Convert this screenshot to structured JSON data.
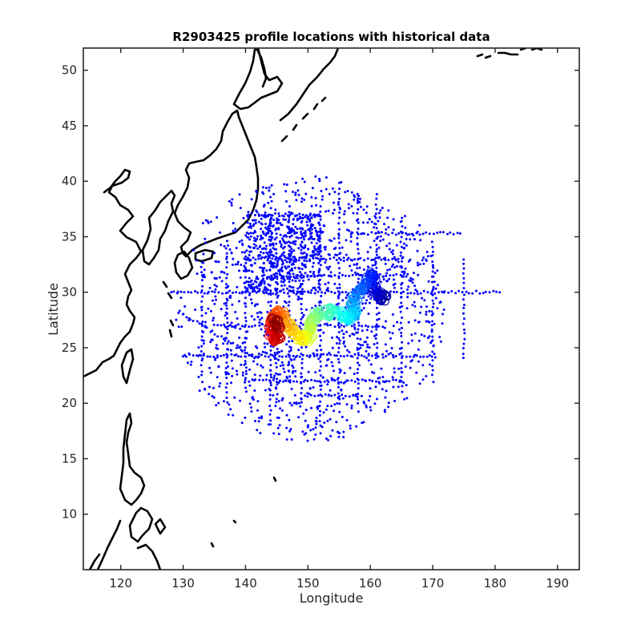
{
  "chart_data": {
    "type": "scatter",
    "title": "R2903425 profile locations with historical data",
    "xlabel": "Longitude",
    "ylabel": "Latitude",
    "xlim": [
      114,
      193.5
    ],
    "ylim": [
      5,
      52
    ],
    "xticks": [
      120,
      130,
      140,
      150,
      160,
      170,
      180,
      190
    ],
    "yticks": [
      10,
      15,
      20,
      25,
      30,
      35,
      40,
      45,
      50
    ],
    "grid": false,
    "legend": "none",
    "colors": {
      "historical": "#0000ff",
      "coastline": "#000000",
      "profile_colormap": [
        "#00008f",
        "#0000ff",
        "#0080ff",
        "#00ffff",
        "#80ff80",
        "#ffff00",
        "#ff8000",
        "#ff0000",
        "#800000"
      ]
    },
    "series": [
      {
        "role": "historical",
        "marker": "dot",
        "cruise_lines": [
          {
            "axis": "lat",
            "at": 30.0,
            "from": 128,
            "to": 181
          },
          {
            "axis": "lat",
            "at": 24.3,
            "from": 130,
            "to": 170
          },
          {
            "axis": "lat",
            "at": 37.0,
            "from": 141,
            "to": 152
          },
          {
            "axis": "lat",
            "at": 33.0,
            "from": 142,
            "to": 165
          },
          {
            "axis": "lat",
            "at": 31.5,
            "from": 145,
            "to": 166
          },
          {
            "axis": "lat",
            "at": 20.7,
            "from": 150,
            "to": 158
          },
          {
            "axis": "lat",
            "at": 35.3,
            "from": 158,
            "to": 175
          },
          {
            "axis": "lat",
            "at": 27.0,
            "from": 135,
            "to": 162
          },
          {
            "axis": "lat",
            "at": 22.0,
            "from": 140,
            "to": 165
          },
          {
            "axis": "lon",
            "at": 137.0,
            "from": 20,
            "to": 34
          },
          {
            "axis": "lon",
            "at": 144.0,
            "from": 18,
            "to": 37
          },
          {
            "axis": "lon",
            "at": 145.0,
            "from": 20,
            "to": 37
          },
          {
            "axis": "lon",
            "at": 147.0,
            "from": 22,
            "to": 38
          },
          {
            "axis": "lon",
            "at": 149.0,
            "from": 20,
            "to": 37
          },
          {
            "axis": "lon",
            "at": 155.0,
            "from": 20,
            "to": 40
          },
          {
            "axis": "lon",
            "at": 165.0,
            "from": 21,
            "to": 37
          },
          {
            "axis": "lon",
            "at": 170.0,
            "from": 22,
            "to": 35
          },
          {
            "axis": "lon",
            "at": 175.0,
            "from": 24,
            "to": 33
          },
          {
            "axis": "lon",
            "at": 161.0,
            "from": 24,
            "to": 39
          },
          {
            "axis": "lon",
            "at": 140.0,
            "from": 21,
            "to": 34
          },
          {
            "axis": "lon",
            "at": 152.0,
            "from": 18,
            "to": 38
          },
          {
            "axis": "lon",
            "at": 158.0,
            "from": 20,
            "to": 39
          },
          {
            "axis": "lon",
            "at": 133.0,
            "from": 22,
            "to": 33
          },
          {
            "axis": "diag",
            "from": [
              138,
              33
            ],
            "to": [
              150,
              18
            ]
          },
          {
            "axis": "diag",
            "from": [
              150,
              36
            ],
            "to": [
              163,
              20
            ]
          },
          {
            "axis": "diag",
            "from": [
              153,
              24
            ],
            "to": [
              168,
              36
            ]
          },
          {
            "axis": "diag",
            "from": [
              157,
              39
            ],
            "to": [
              170,
              28
            ]
          },
          {
            "axis": "diag",
            "from": [
              130,
              28
            ],
            "to": [
              142,
              24
            ]
          },
          {
            "axis": "diag",
            "from": [
              140,
              30
            ],
            "to": [
              152,
              34
            ]
          }
        ],
        "scatter_region": {
          "center": [
            150,
            28.5
          ],
          "lon_radius": 22,
          "lat_radius": 12,
          "count": 1000
        }
      },
      {
        "role": "float_profiles",
        "marker": "circle",
        "colormap": "jet",
        "track": [
          [
            162.6,
            29.4
          ],
          [
            161.8,
            29.6
          ],
          [
            160.8,
            30.0
          ],
          [
            160.4,
            31.0
          ],
          [
            160.5,
            31.8
          ],
          [
            159.5,
            30.8
          ],
          [
            158.3,
            30.2
          ],
          [
            157.4,
            29.5
          ],
          [
            157.0,
            28.6
          ],
          [
            157.6,
            28.0
          ],
          [
            156.5,
            27.8
          ],
          [
            155.0,
            28.0
          ],
          [
            153.6,
            28.3
          ],
          [
            152.2,
            28.0
          ],
          [
            151.0,
            27.6
          ],
          [
            150.2,
            27.0
          ],
          [
            150.4,
            26.2
          ],
          [
            149.6,
            25.8
          ],
          [
            148.4,
            26.0
          ],
          [
            147.4,
            26.6
          ],
          [
            146.4,
            27.2
          ],
          [
            145.8,
            27.9
          ],
          [
            145.0,
            28.2
          ],
          [
            144.1,
            27.6
          ],
          [
            144.0,
            26.6
          ],
          [
            144.6,
            25.8
          ],
          [
            145.5,
            25.9
          ],
          [
            145.2,
            27.0
          ],
          [
            144.5,
            27.4
          ]
        ]
      }
    ]
  }
}
